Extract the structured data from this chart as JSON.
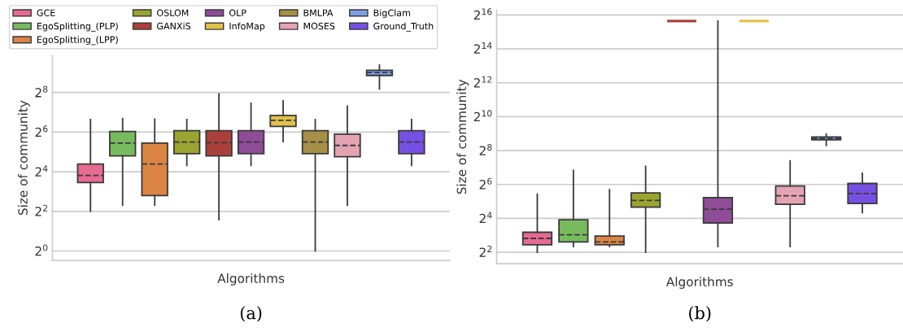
{
  "chart_data": [
    {
      "type": "box",
      "xlabel": "Algorithms",
      "ylabel": "Size of community",
      "categories": [
        null
      ],
      "log": "y",
      "grid": "y",
      "legend": "top left",
      "ylim": [
        0.72,
        936
      ],
      "yticks": [
        {
          "value": 1,
          "label": "2$^{0}$"
        },
        {
          "value": 4,
          "label": "2$^{2}$"
        },
        {
          "value": 16,
          "label": "2$^{4}$"
        },
        {
          "value": 64,
          "label": "2$^{6}$"
        },
        {
          "value": 256,
          "label": "2$^{8}$"
        }
      ],
      "annotations": [
        "(a)"
      ],
      "series": [
        {
          "name": "GCE",
          "color": "#e66a92",
          "boxes": [
            {
              "low": 4.03,
              "q1": 11.0,
              "median": 14.1,
              "q3": 21.0,
              "high": 99.7
            }
          ]
        },
        {
          "name": "EgoSplitting_(PLP)",
          "color": "#78bb5e",
          "boxes": [
            {
              "low": 4.96,
              "q1": 27.9,
              "median": 43.7,
              "q3": 65.3,
              "high": 103
            }
          ]
        },
        {
          "name": "EgoSplitting_(LPP)",
          "color": "#dc8444",
          "boxes": [
            {
              "low": 4.96,
              "q1": 6.96,
              "median": 21.0,
              "q3": 43.7,
              "high": 101
            }
          ]
        },
        {
          "name": "OSLOM",
          "color": "#9aa52f",
          "boxes": [
            {
              "low": 20.0,
              "q1": 30.1,
              "median": 45.3,
              "q3": 67.2,
              "high": 99.7
            }
          ]
        },
        {
          "name": "GANXiS",
          "color": "#ab403b",
          "boxes": [
            {
              "low": 2.99,
              "q1": 27.9,
              "median": 44.3,
              "q3": 67.2,
              "high": 244
            }
          ]
        },
        {
          "name": "OLP",
          "color": "#8f4c97",
          "boxes": [
            {
              "low": 20.0,
              "q1": 30.1,
              "median": 45.3,
              "q3": 67.2,
              "high": 176
            }
          ]
        },
        {
          "name": "InfoMap",
          "color": "#e3c04a",
          "boxes": [
            {
              "low": 45.9,
              "q1": 78.2,
              "median": 97.0,
              "q3": 115,
              "high": 191
            }
          ]
        },
        {
          "name": "BMLPA",
          "color": "#a68f46",
          "boxes": [
            {
              "low": 1,
              "q1": 30.1,
              "median": 45.3,
              "q3": 67.2,
              "high": 99.7
            }
          ]
        },
        {
          "name": "MOSES",
          "color": "#e4a3b3",
          "boxes": [
            {
              "low": 4.96,
              "q1": 27.1,
              "median": 40.2,
              "q3": 59.7,
              "high": 159
            }
          ]
        },
        {
          "name": "BigClam",
          "color": "#7a9fe4",
          "boxes": [
            {
              "low": 290,
              "q1": 465,
              "median": 516,
              "q3": 556,
              "high": 671
            }
          ]
        },
        {
          "name": "Ground_Truth",
          "color": "#7650e3",
          "boxes": [
            {
              "low": 20.0,
              "q1": 30.1,
              "median": 45.3,
              "q3": 67.2,
              "high": 99.7
            }
          ]
        }
      ]
    },
    {
      "type": "box",
      "xlabel": "Algorithms",
      "ylabel": "Size of community",
      "categories": [
        null
      ],
      "log": "y",
      "grid": "y",
      "ylim": [
        2.5,
        80000
      ],
      "yticks": [
        {
          "value": 4,
          "label": "2$^{2}$"
        },
        {
          "value": 16,
          "label": "2$^{4}$"
        },
        {
          "value": 64,
          "label": "2$^{6}$"
        },
        {
          "value": 256,
          "label": "2$^{8}$"
        },
        {
          "value": 1024,
          "label": "2$^{10}$"
        },
        {
          "value": 4096,
          "label": "2$^{12}$"
        },
        {
          "value": 16384,
          "label": "2$^{14}$"
        },
        {
          "value": 65536,
          "label": "2$^{16}$"
        }
      ],
      "annotations": [
        "(b)"
      ],
      "series": [
        {
          "color": "#e66a92",
          "boxes": [
            {
              "low": 4,
              "q1": 5.43,
              "median": 7.06,
              "q3": 9.06,
              "high": 43.1
            }
          ]
        },
        {
          "color": "#78bb5e",
          "boxes": [
            {
              "low": 5.06,
              "q1": 6.1,
              "median": 8.17,
              "q3": 15.1,
              "high": 114
            }
          ]
        },
        {
          "color": "#dc8444",
          "boxes": [
            {
              "low": 5.06,
              "q1": 5.43,
              "median": 6.1,
              "q3": 7.78,
              "high": 51.6
            }
          ]
        },
        {
          "color": "#9aa52f",
          "boxes": [
            {
              "low": 4,
              "q1": 25.3,
              "median": 33.4,
              "q3": 45.3,
              "high": 134
            }
          ]
        },
        {
          "color": "#ab403b",
          "boxes": [
            {
              "low": 51000,
              "q1": 51000,
              "median": 51000,
              "q3": 51000,
              "high": 51000
            }
          ]
        },
        {
          "color": "#8f4c97",
          "boxes": [
            {
              "low": 5.06,
              "q1": 13.2,
              "median": 23.3,
              "q3": 37.5,
              "high": 51000
            }
          ]
        },
        {
          "color": "#e3c04a",
          "boxes": [
            {
              "low": 51000,
              "q1": 51000,
              "median": 51000,
              "q3": 51000,
              "high": 51000
            }
          ]
        },
        {
          "color": "#e4a3b3",
          "boxes": [
            {
              "low": 5.06,
              "q1": 28.4,
              "median": 40.2,
              "q3": 60.1,
              "high": 169
            }
          ]
        },
        {
          "color": "#7a9fe4",
          "boxes": [
            {
              "low": 315,
              "q1": 396,
              "median": 422,
              "q3": 446,
              "high": 501
            }
          ]
        },
        {
          "color": "#7650e3",
          "boxes": [
            {
              "low": 20.3,
              "q1": 29.4,
              "median": 44.3,
              "q3": 66.7,
              "high": 101
            }
          ]
        }
      ]
    }
  ]
}
